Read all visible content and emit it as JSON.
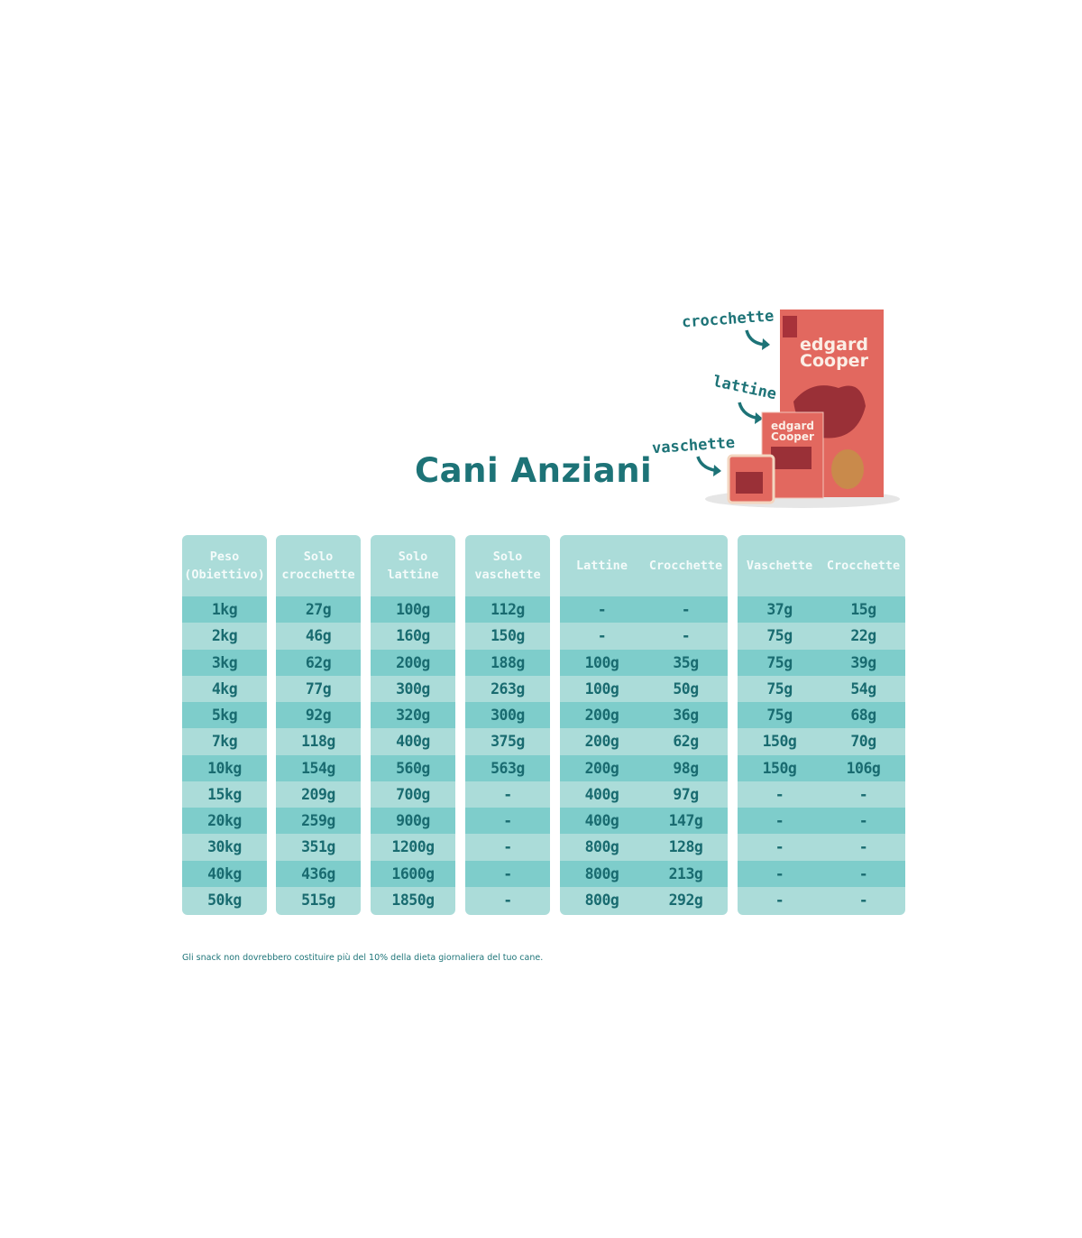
{
  "title": "Cani Anziani",
  "product_labels": {
    "kibble": "crocchette",
    "cans": "lattine",
    "trays": "vaschette"
  },
  "brand": "edgard cooper",
  "colors": {
    "accent": "#1d7377",
    "header_bg": "#abdcd9",
    "row_dark": "#7ecdcb",
    "row_light": "#abdcd9",
    "product": "#e0675e"
  },
  "table": {
    "panels": [
      {
        "headers": [
          "Peso\n(Obiettivo)"
        ],
        "columns": [
          [
            "1kg",
            "2kg",
            "3kg",
            "4kg",
            "5kg",
            "7kg",
            "10kg",
            "15kg",
            "20kg",
            "30kg",
            "40kg",
            "50kg"
          ]
        ]
      },
      {
        "headers": [
          "Solo\ncrocchette"
        ],
        "columns": [
          [
            "27g",
            "46g",
            "62g",
            "77g",
            "92g",
            "118g",
            "154g",
            "209g",
            "259g",
            "351g",
            "436g",
            "515g"
          ]
        ]
      },
      {
        "headers": [
          "Solo\nlattine"
        ],
        "columns": [
          [
            "100g",
            "160g",
            "200g",
            "300g",
            "320g",
            "400g",
            "560g",
            "700g",
            "900g",
            "1200g",
            "1600g",
            "1850g"
          ]
        ]
      },
      {
        "headers": [
          "Solo\nvaschette"
        ],
        "columns": [
          [
            "112g",
            "150g",
            "188g",
            "263g",
            "300g",
            "375g",
            "563g",
            "-",
            "-",
            "-",
            "-",
            "-"
          ]
        ]
      },
      {
        "headers": [
          "Lattine",
          "Crocchette"
        ],
        "columns": [
          [
            "-",
            "-",
            "100g",
            "100g",
            "200g",
            "200g",
            "200g",
            "400g",
            "400g",
            "800g",
            "800g",
            "800g"
          ],
          [
            "-",
            "-",
            "35g",
            "50g",
            "36g",
            "62g",
            "98g",
            "97g",
            "147g",
            "128g",
            "213g",
            "292g"
          ]
        ]
      },
      {
        "headers": [
          "Vaschette",
          "Crocchette"
        ],
        "columns": [
          [
            "37g",
            "75g",
            "75g",
            "75g",
            "75g",
            "150g",
            "150g",
            "-",
            "-",
            "-",
            "-",
            "-"
          ],
          [
            "15g",
            "22g",
            "39g",
            "54g",
            "68g",
            "70g",
            "106g",
            "-",
            "-",
            "-",
            "-",
            "-"
          ]
        ]
      }
    ]
  },
  "footnote": "Gli snack non dovrebbero costituire più del 10% della dieta giornaliera del tuo cane."
}
